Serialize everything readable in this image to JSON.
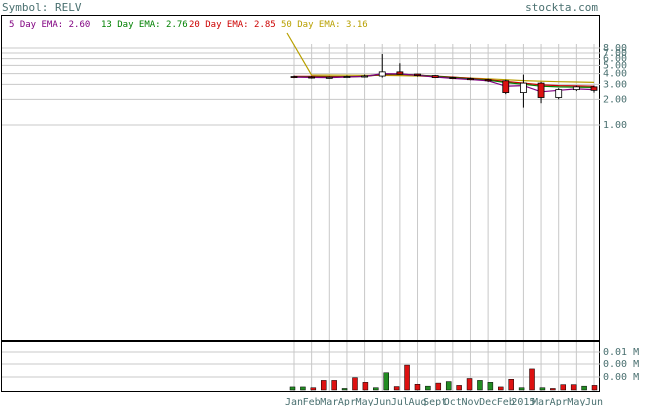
{
  "header": {
    "symbol_text": "Symbol: RELV",
    "site": "stockta.com"
  },
  "legend": [
    {
      "label": "5 Day EMA: 2.60",
      "color": "#800080"
    },
    {
      "label": "13 Day EMA: 2.76",
      "color": "#008000"
    },
    {
      "label": "20 Day EMA: 2.85",
      "color": "#cc0000"
    },
    {
      "label": "50 Day EMA: 3.16",
      "color": "#b8a000"
    }
  ],
  "colors": {
    "up": "#228b22",
    "down": "#dd1111",
    "grid": "#c8c8c8",
    "axis_text": "#4a7070",
    "frame": "#000000"
  },
  "chart_data": [
    {
      "type": "candlestick",
      "title": "",
      "y_scale": "log",
      "yticks": [
        {
          "value": 8.0,
          "label": "8.00"
        },
        {
          "value": 7.0,
          "label": "7.00"
        },
        {
          "value": 6.0,
          "label": "6.00"
        },
        {
          "value": 5.0,
          "label": "5.00"
        },
        {
          "value": 4.0,
          "label": "4.00"
        },
        {
          "value": 3.0,
          "label": "3.00"
        },
        {
          "value": 2.0,
          "label": "2.00"
        },
        {
          "value": 1.0,
          "label": "1.00"
        }
      ],
      "x_ticks": [
        "Jan",
        "Feb",
        "Mar",
        "Apr",
        "May",
        "Jun",
        "Jul",
        "Aug",
        "Sept",
        "Oct",
        "Nov",
        "Dec",
        "Feb",
        "2015",
        "Mar",
        "Apr",
        "May",
        "Jun"
      ],
      "candles": [
        {
          "open": 3.7,
          "high": 3.8,
          "low": 3.55,
          "close": 3.65
        },
        {
          "open": 3.65,
          "high": 3.75,
          "low": 3.5,
          "close": 3.6
        },
        {
          "open": 3.6,
          "high": 3.7,
          "low": 3.5,
          "close": 3.62
        },
        {
          "open": 3.62,
          "high": 3.8,
          "low": 3.55,
          "close": 3.7
        },
        {
          "open": 3.7,
          "high": 3.9,
          "low": 3.6,
          "close": 3.75
        },
        {
          "open": 3.75,
          "high": 6.8,
          "low": 3.6,
          "close": 4.2
        },
        {
          "open": 4.2,
          "high": 5.3,
          "low": 3.9,
          "close": 3.95
        },
        {
          "open": 3.95,
          "high": 4.0,
          "low": 3.7,
          "close": 3.8
        },
        {
          "open": 3.8,
          "high": 3.85,
          "low": 3.55,
          "close": 3.6
        },
        {
          "open": 3.6,
          "high": 3.7,
          "low": 3.45,
          "close": 3.5
        },
        {
          "open": 3.5,
          "high": 3.6,
          "low": 3.35,
          "close": 3.4
        },
        {
          "open": 3.4,
          "high": 3.5,
          "low": 3.2,
          "close": 3.3
        },
        {
          "open": 3.3,
          "high": 3.4,
          "low": 2.3,
          "close": 2.4
        },
        {
          "open": 2.4,
          "high": 3.9,
          "low": 1.6,
          "close": 3.1
        },
        {
          "open": 3.1,
          "high": 3.2,
          "low": 1.8,
          "close": 2.1
        },
        {
          "open": 2.1,
          "high": 2.7,
          "low": 2.0,
          "close": 2.6
        },
        {
          "open": 2.6,
          "high": 2.9,
          "low": 2.5,
          "close": 2.8
        },
        {
          "open": 2.8,
          "high": 2.9,
          "low": 2.4,
          "close": 2.55
        }
      ],
      "ema": [
        {
          "name": "50 Day EMA",
          "color": "#b8a000",
          "values": [
            12.0,
            3.85,
            3.85,
            3.84,
            3.83,
            3.82,
            3.8,
            3.76,
            3.7,
            3.64,
            3.55,
            3.48,
            3.4,
            3.32,
            3.26,
            3.22,
            3.19,
            3.16
          ]
        },
        {
          "name": "20 Day EMA",
          "color": "#cc0000",
          "values": [
            3.72,
            3.72,
            3.7,
            3.7,
            3.72,
            3.9,
            3.92,
            3.85,
            3.75,
            3.65,
            3.52,
            3.4,
            3.25,
            3.1,
            2.95,
            2.9,
            2.88,
            2.85
          ]
        },
        {
          "name": "13 Day EMA",
          "color": "#008000",
          "values": [
            3.68,
            3.66,
            3.64,
            3.68,
            3.72,
            3.95,
            3.95,
            3.85,
            3.72,
            3.6,
            3.48,
            3.35,
            3.15,
            3.0,
            2.85,
            2.8,
            2.78,
            2.76
          ]
        },
        {
          "name": "5 Day EMA",
          "color": "#800080",
          "values": [
            3.65,
            3.62,
            3.6,
            3.66,
            3.72,
            4.0,
            3.98,
            3.82,
            3.66,
            3.52,
            3.42,
            3.3,
            2.85,
            2.9,
            2.45,
            2.55,
            2.65,
            2.6
          ]
        }
      ]
    },
    {
      "type": "bar",
      "title": "Volume",
      "ytick_labels": [
        "0.01 M",
        "0.00 M",
        "0.00 M"
      ],
      "ylim": [
        0,
        0.012
      ],
      "bars": [
        {
          "value": 0.0008,
          "dir": "up"
        },
        {
          "value": 0.0008,
          "dir": "up"
        },
        {
          "value": 0.0006,
          "dir": "down"
        },
        {
          "value": 0.0025,
          "dir": "down"
        },
        {
          "value": 0.0025,
          "dir": "down"
        },
        {
          "value": 0.0004,
          "dir": "up"
        },
        {
          "value": 0.0032,
          "dir": "down"
        },
        {
          "value": 0.002,
          "dir": "down"
        },
        {
          "value": 0.0006,
          "dir": "up"
        },
        {
          "value": 0.0045,
          "dir": "up"
        },
        {
          "value": 0.0009,
          "dir": "down"
        },
        {
          "value": 0.0065,
          "dir": "down"
        },
        {
          "value": 0.0015,
          "dir": "down"
        },
        {
          "value": 0.001,
          "dir": "up"
        },
        {
          "value": 0.0018,
          "dir": "down"
        },
        {
          "value": 0.0022,
          "dir": "up"
        },
        {
          "value": 0.0012,
          "dir": "down"
        },
        {
          "value": 0.003,
          "dir": "down"
        },
        {
          "value": 0.0025,
          "dir": "up"
        },
        {
          "value": 0.002,
          "dir": "up"
        },
        {
          "value": 0.0008,
          "dir": "down"
        },
        {
          "value": 0.0028,
          "dir": "down"
        },
        {
          "value": 0.0006,
          "dir": "up"
        },
        {
          "value": 0.0055,
          "dir": "down"
        },
        {
          "value": 0.0006,
          "dir": "up"
        },
        {
          "value": 0.0004,
          "dir": "down"
        },
        {
          "value": 0.0014,
          "dir": "down"
        },
        {
          "value": 0.0014,
          "dir": "down"
        },
        {
          "value": 0.001,
          "dir": "up"
        },
        {
          "value": 0.0012,
          "dir": "down"
        }
      ]
    }
  ]
}
